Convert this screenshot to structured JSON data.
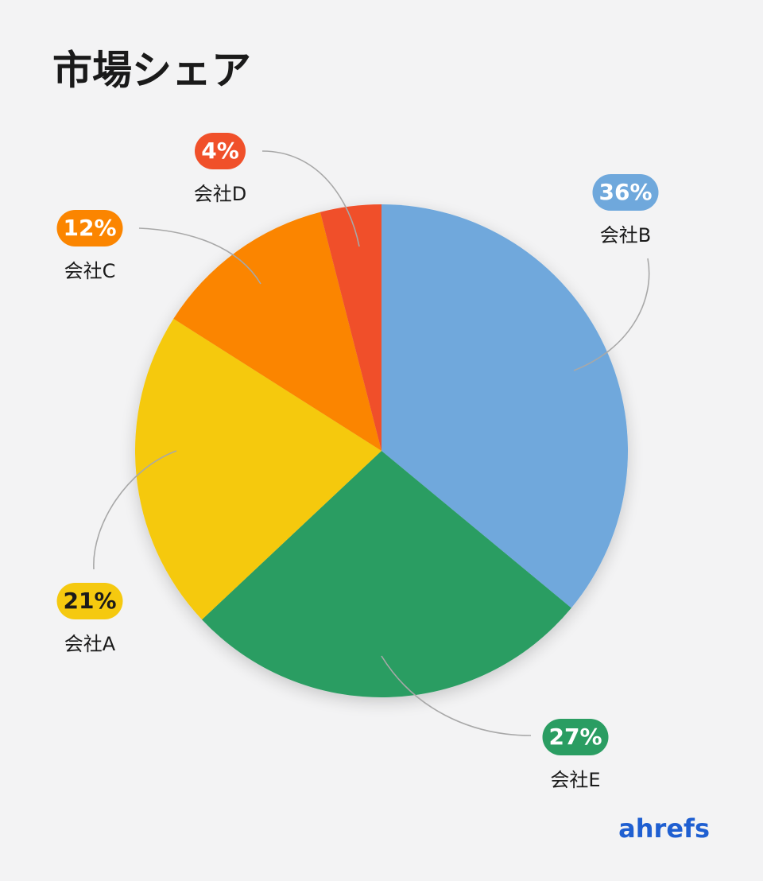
{
  "chart_data": {
    "type": "pie",
    "title": "市場シェア",
    "categories": [
      "会社B",
      "会社E",
      "会社A",
      "会社C",
      "会社D"
    ],
    "values": [
      36,
      27,
      21,
      12,
      4
    ],
    "value_labels": [
      "36%",
      "27%",
      "21%",
      "12%",
      "4%"
    ],
    "colors": [
      "#6fa8dc",
      "#2a9d62",
      "#f5c90f",
      "#fb8500",
      "#f0502a"
    ],
    "brand": "ahrefs"
  }
}
